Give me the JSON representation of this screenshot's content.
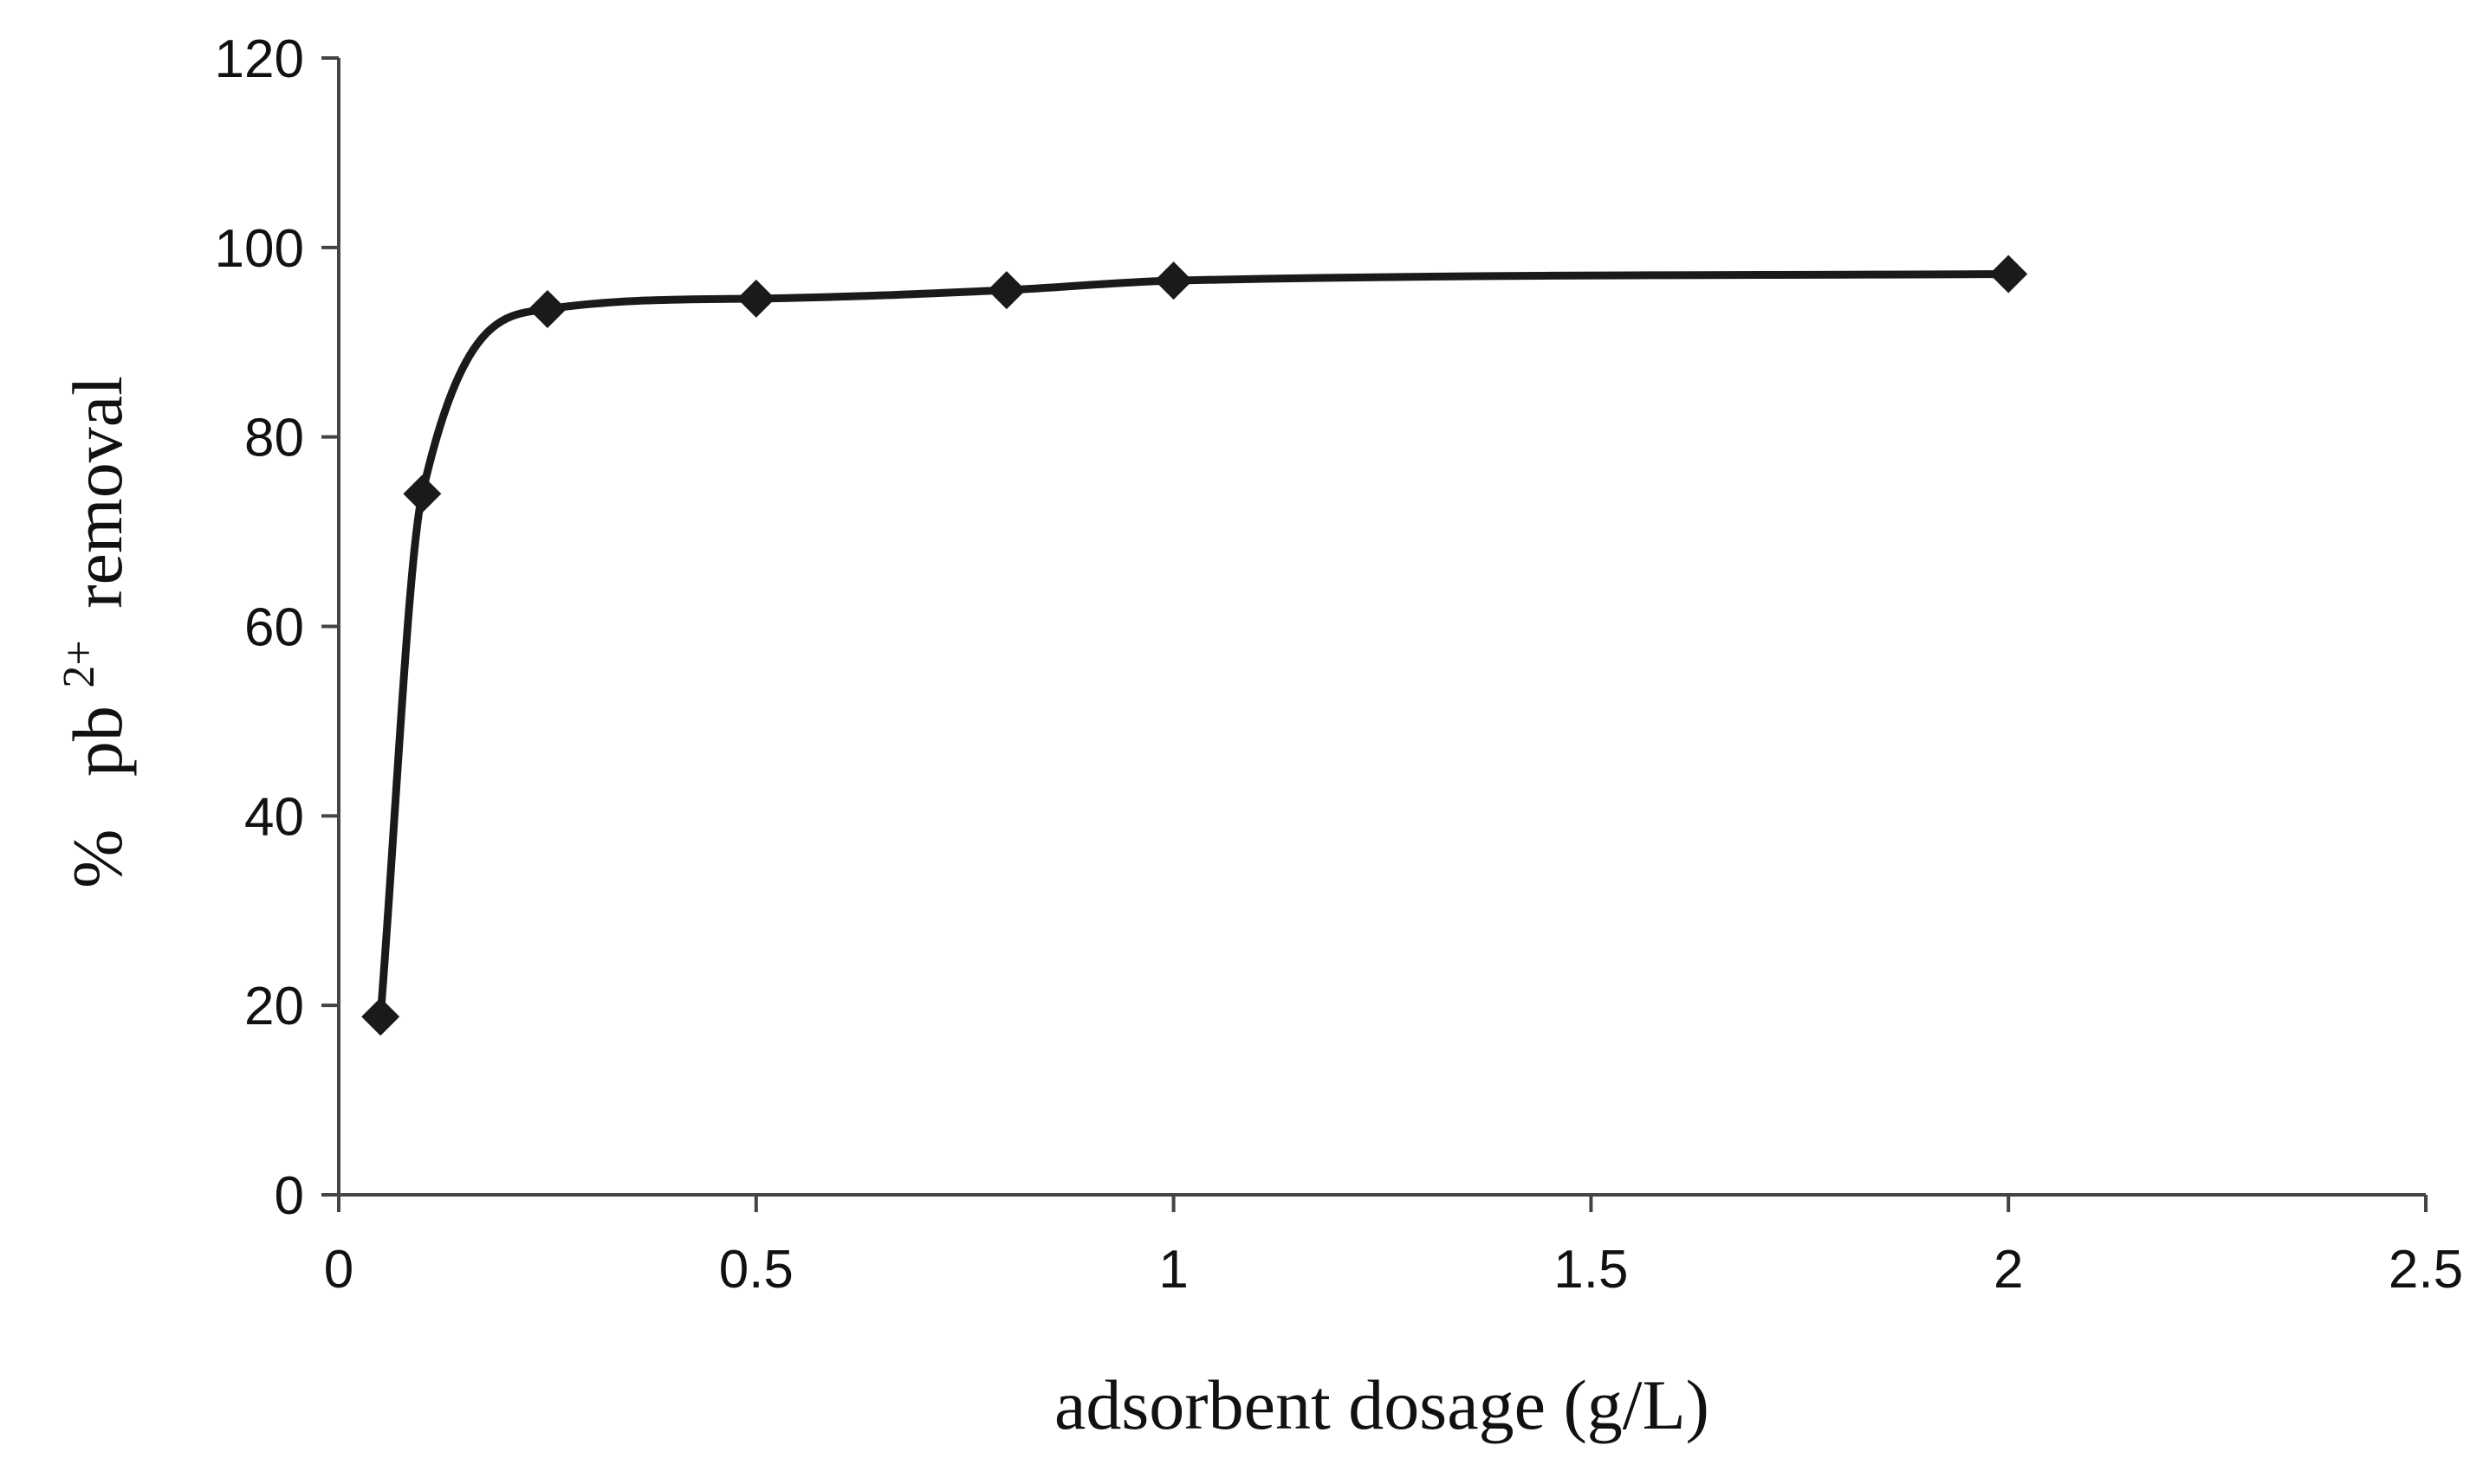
{
  "chart_data": {
    "type": "line",
    "title": "",
    "xlabel": "adsorbent dosage (g/L)",
    "ylabel": {
      "prefix": "%",
      "species": "pb",
      "superscript": "2+",
      "suffix": "removal"
    },
    "xlim": [
      0,
      2.5
    ],
    "ylim": [
      0,
      120
    ],
    "xticks": [
      0,
      0.5,
      1,
      1.5,
      2,
      2.5
    ],
    "xtick_labels": [
      "0",
      "0.5",
      "1",
      "1.5",
      "2",
      "2.5"
    ],
    "yticks": [
      0,
      20,
      40,
      60,
      80,
      100,
      120
    ],
    "ytick_labels": [
      "0",
      "20",
      "40",
      "60",
      "80",
      "100",
      "120"
    ],
    "grid": false,
    "legend": "none",
    "marker": "diamond",
    "line_style": "smooth",
    "line_color": "#1a1a1a",
    "marker_color": "#1a1a1a",
    "series": [
      {
        "x": [
          0.05,
          0.1,
          0.25,
          0.5,
          0.8,
          1,
          2
        ],
        "values": [
          18.8,
          74.0,
          93.5,
          94.6,
          95.5,
          96.5,
          97.2
        ]
      }
    ]
  }
}
